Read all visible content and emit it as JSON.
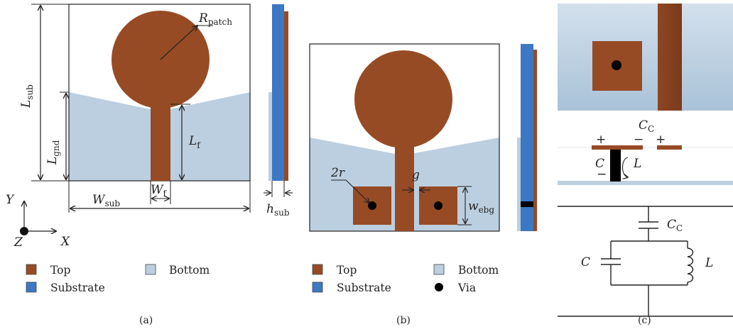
{
  "colors": {
    "top": "#974b24",
    "bottom": "#bccfe0",
    "substrate": "#3c78c4",
    "via": "#000000",
    "line": "#222222"
  },
  "panel_a": {
    "caption": "(a)",
    "labels": {
      "R_main": "R",
      "R_sub": "patch",
      "Lsub_main": "L",
      "Lsub_sub": "sub",
      "Lgnd_main": "L",
      "Lgnd_sub": "gnd",
      "Lf_main": "L",
      "Lf_sub": "f",
      "Wsub_main": "W",
      "Wsub_sub": "sub",
      "Wf_main": "W",
      "Wf_sub": "f",
      "hsub_main": "h",
      "hsub_sub": "sub"
    },
    "axes": {
      "y": "Y",
      "x": "X",
      "z": "Z"
    },
    "legend": {
      "top": "Top",
      "bottom": "Bottom",
      "substrate": "Substrate"
    }
  },
  "panel_b": {
    "caption": "(b)",
    "labels": {
      "two_r": "2r",
      "g": "g",
      "webg_main": "w",
      "webg_sub": "ebg"
    },
    "legend": {
      "top": "Top",
      "bottom": "Bottom",
      "substrate": "Substrate",
      "via": "Via"
    }
  },
  "panel_c": {
    "caption": "(c)",
    "labels": {
      "Cc_main": "C",
      "Cc_sub": "C",
      "C": "C",
      "L": "L",
      "plus1": "+",
      "minus1": "−",
      "plus2": "+",
      "minus2": "−",
      "circuit_Cc_main": "C",
      "circuit_Cc_sub": "C",
      "circuit_C": "C",
      "circuit_L": "L"
    }
  }
}
